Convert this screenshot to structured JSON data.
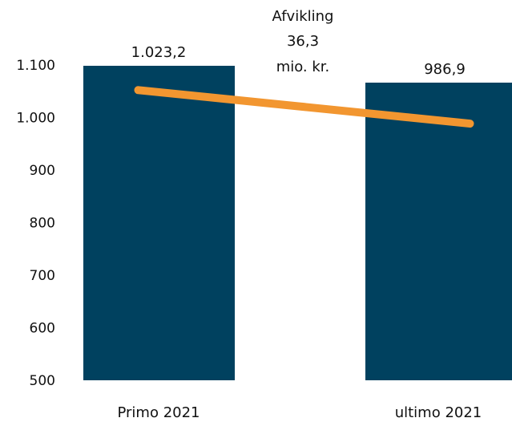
{
  "chart_data": {
    "type": "bar",
    "categories": [
      "Primo 2021",
      "ultimo 2021"
    ],
    "values": [
      1023.2,
      986.9
    ],
    "value_labels": [
      "1.023,2",
      "986,9"
    ],
    "ylim": [
      500,
      1100
    ],
    "yticks": [
      500,
      600,
      700,
      800,
      900,
      1000,
      1100
    ],
    "ytick_labels": [
      "500",
      "600",
      "700",
      "800",
      "900",
      "1.000",
      "1.100"
    ],
    "bar_color": "#00415f",
    "line_color": "#f29630",
    "annotation": [
      "Afvikling",
      "36,3",
      "mio. kr."
    ],
    "grid": false,
    "legend": "none"
  }
}
